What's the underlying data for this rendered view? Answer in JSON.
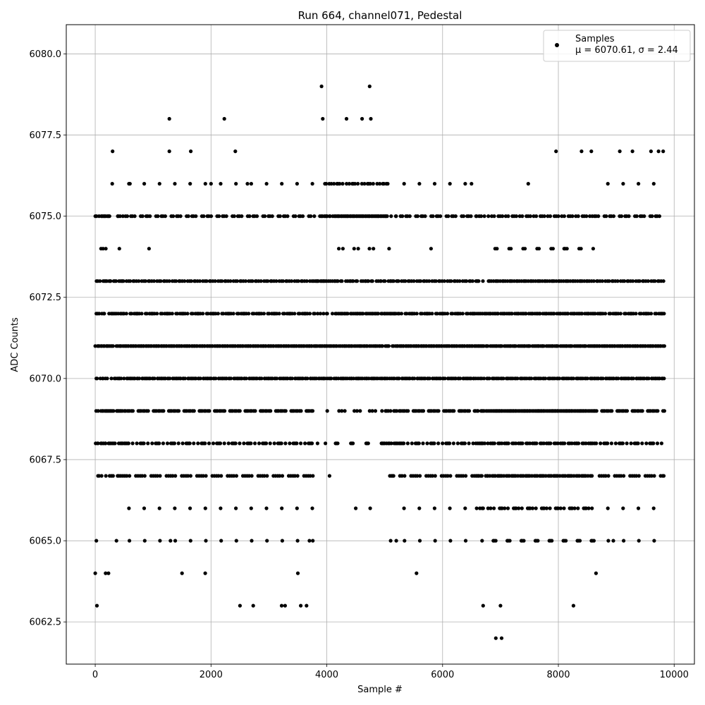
{
  "chart_data": {
    "type": "scatter",
    "title": "Run 664, channel071, Pedestal",
    "xlabel": "Sample #",
    "ylabel": "ADC Counts",
    "xlim": [
      -500,
      10350
    ],
    "ylim": [
      6061.2,
      6080.9
    ],
    "x_ticks": [
      0,
      2000,
      4000,
      6000,
      8000,
      10000
    ],
    "x_tick_labels": [
      "0",
      "2000",
      "4000",
      "6000",
      "8000",
      "10000"
    ],
    "y_ticks": [
      6062.5,
      6065.0,
      6067.5,
      6070.0,
      6072.5,
      6075.0,
      6077.5,
      6080.0
    ],
    "y_tick_labels": [
      "6062.5",
      "6065.0",
      "6067.5",
      "6070.0",
      "6072.5",
      "6075.0",
      "6077.5",
      "6080.0"
    ],
    "grid": true,
    "legend": {
      "placement": "top-right",
      "label": "Samples",
      "stats": "μ = 6070.61, σ = 2.44"
    },
    "series": [
      {
        "name": "Samples",
        "color": "#000000",
        "x_range": [
          0,
          9830
        ],
        "levels": [
          6062,
          6063,
          6064,
          6065,
          6066,
          6067,
          6068,
          6069,
          6070,
          6071,
          6072,
          6073,
          6074,
          6075,
          6076,
          6077,
          6078,
          6079
        ],
        "mean": 6070.61,
        "sigma": 2.44,
        "sample_count": 9831,
        "points_shown": [
          [
            0,
            6064
          ],
          [
            20,
            6065
          ],
          [
            30,
            6063
          ],
          [
            100,
            6074
          ],
          [
            180,
            6064
          ],
          [
            230,
            6064
          ],
          [
            300,
            6077
          ],
          [
            600,
            6076
          ],
          [
            930,
            6074
          ],
          [
            1280,
            6078
          ],
          [
            1280,
            6077
          ],
          [
            1300,
            6065
          ],
          [
            1500,
            6064
          ],
          [
            1650,
            6077
          ],
          [
            1900,
            6064
          ],
          [
            2000,
            6076
          ],
          [
            2230,
            6078
          ],
          [
            2420,
            6077
          ],
          [
            2500,
            6063
          ],
          [
            2630,
            6076
          ],
          [
            2730,
            6063
          ],
          [
            3220,
            6063
          ],
          [
            3280,
            6063
          ],
          [
            3500,
            6064
          ],
          [
            3550,
            6063
          ],
          [
            3650,
            6063
          ],
          [
            3700,
            6065
          ],
          [
            3910,
            6079
          ],
          [
            3930,
            6078
          ],
          [
            4340,
            6078
          ],
          [
            4610,
            6078
          ],
          [
            4740,
            6079
          ],
          [
            4760,
            6078
          ],
          [
            4500,
            6066
          ],
          [
            4750,
            6066
          ],
          [
            5200,
            6065
          ],
          [
            5550,
            6064
          ],
          [
            5800,
            6074
          ],
          [
            6500,
            6076
          ],
          [
            6920,
            6062
          ],
          [
            7020,
            6062
          ],
          [
            6700,
            6063
          ],
          [
            7000,
            6063
          ],
          [
            7480,
            6076
          ],
          [
            7960,
            6077
          ],
          [
            8100,
            6074
          ],
          [
            8260,
            6063
          ],
          [
            8400,
            6077
          ],
          [
            8570,
            6077
          ],
          [
            8650,
            6064
          ],
          [
            8950,
            6065
          ],
          [
            9060,
            6077
          ],
          [
            9280,
            6077
          ],
          [
            9600,
            6077
          ],
          [
            9730,
            6077
          ],
          [
            9810,
            6077
          ],
          [
            9820,
            6067
          ]
        ]
      }
    ]
  }
}
